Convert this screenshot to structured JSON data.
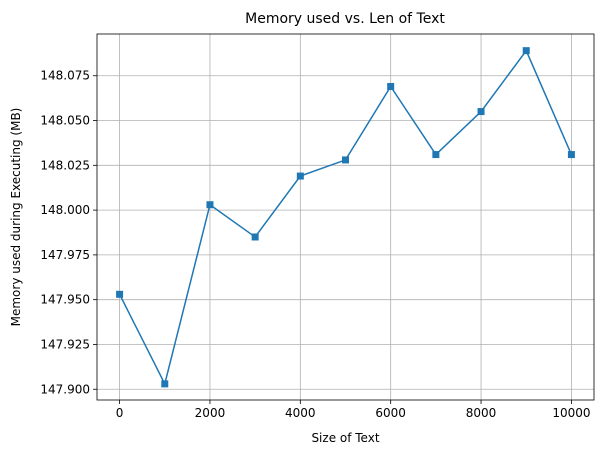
{
  "chart_data": {
    "type": "line",
    "title": "Memory used vs. Len of Text",
    "xlabel": "Size of Text",
    "ylabel": "Memory used during Executing (MB)",
    "x": [
      0,
      1000,
      2000,
      3000,
      4000,
      5000,
      6000,
      7000,
      8000,
      9000,
      10000
    ],
    "series": [
      {
        "values": [
          147.953,
          147.903,
          148.003,
          147.985,
          148.019,
          148.028,
          148.069,
          148.031,
          148.055,
          148.089,
          148.031
        ],
        "color": "#1f77b4",
        "marker": "square"
      }
    ],
    "xticks": [
      0,
      2000,
      4000,
      6000,
      8000,
      10000
    ],
    "xtick_labels": [
      "0",
      "2000",
      "4000",
      "6000",
      "8000",
      "10000"
    ],
    "yticks": [
      147.9,
      147.925,
      147.95,
      147.975,
      148.0,
      148.025,
      148.05,
      148.075
    ],
    "ytick_labels": [
      "147.900",
      "147.925",
      "147.950",
      "147.975",
      "148.000",
      "148.025",
      "148.050",
      "148.075"
    ],
    "xlim": [
      -500,
      10500
    ],
    "ylim": [
      147.894,
      148.0983
    ],
    "grid": true
  }
}
